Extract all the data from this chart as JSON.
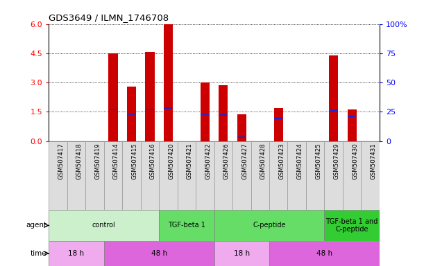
{
  "title": "GDS3649 / ILMN_1746708",
  "samples": [
    "GSM507417",
    "GSM507418",
    "GSM507419",
    "GSM507414",
    "GSM507415",
    "GSM507416",
    "GSM507420",
    "GSM507421",
    "GSM507422",
    "GSM507426",
    "GSM507427",
    "GSM507428",
    "GSM507423",
    "GSM507424",
    "GSM507425",
    "GSM507429",
    "GSM507430",
    "GSM507431"
  ],
  "bar_heights": [
    0.0,
    0.0,
    0.0,
    4.5,
    2.8,
    4.55,
    6.0,
    0.0,
    3.0,
    2.85,
    1.38,
    0.0,
    1.7,
    0.0,
    0.0,
    4.4,
    1.6,
    0.0
  ],
  "blue_marks": [
    0.0,
    0.0,
    0.0,
    1.6,
    1.35,
    1.6,
    1.7,
    0.0,
    1.35,
    1.32,
    0.18,
    0.0,
    1.15,
    0.0,
    0.0,
    1.55,
    1.25,
    0.0
  ],
  "ylim_left": [
    0,
    6
  ],
  "ylim_right": [
    0,
    100
  ],
  "yticks_left": [
    0,
    1.5,
    3,
    4.5,
    6
  ],
  "yticks_right": [
    0,
    25,
    50,
    75,
    100
  ],
  "bar_color": "#cc0000",
  "blue_color": "#2222cc",
  "bar_width": 0.5,
  "agent_groups": [
    {
      "label": "control",
      "start": 0,
      "end": 5,
      "color": "#ccf0cc"
    },
    {
      "label": "TGF-beta 1",
      "start": 6,
      "end": 8,
      "color": "#66dd66"
    },
    {
      "label": "C-peptide",
      "start": 9,
      "end": 14,
      "color": "#66dd66"
    },
    {
      "label": "TGF-beta 1 and\nC-peptide",
      "start": 15,
      "end": 17,
      "color": "#33cc33"
    }
  ],
  "time_groups": [
    {
      "label": "18 h",
      "start": 0,
      "end": 2,
      "color": "#f0aaee"
    },
    {
      "label": "48 h",
      "start": 3,
      "end": 8,
      "color": "#dd66dd"
    },
    {
      "label": "18 h",
      "start": 9,
      "end": 11,
      "color": "#f0aaee"
    },
    {
      "label": "48 h",
      "start": 12,
      "end": 17,
      "color": "#dd66dd"
    }
  ],
  "bg_color": "#ffffff",
  "tick_bg_color": "#dddddd",
  "tick_border_color": "#999999"
}
